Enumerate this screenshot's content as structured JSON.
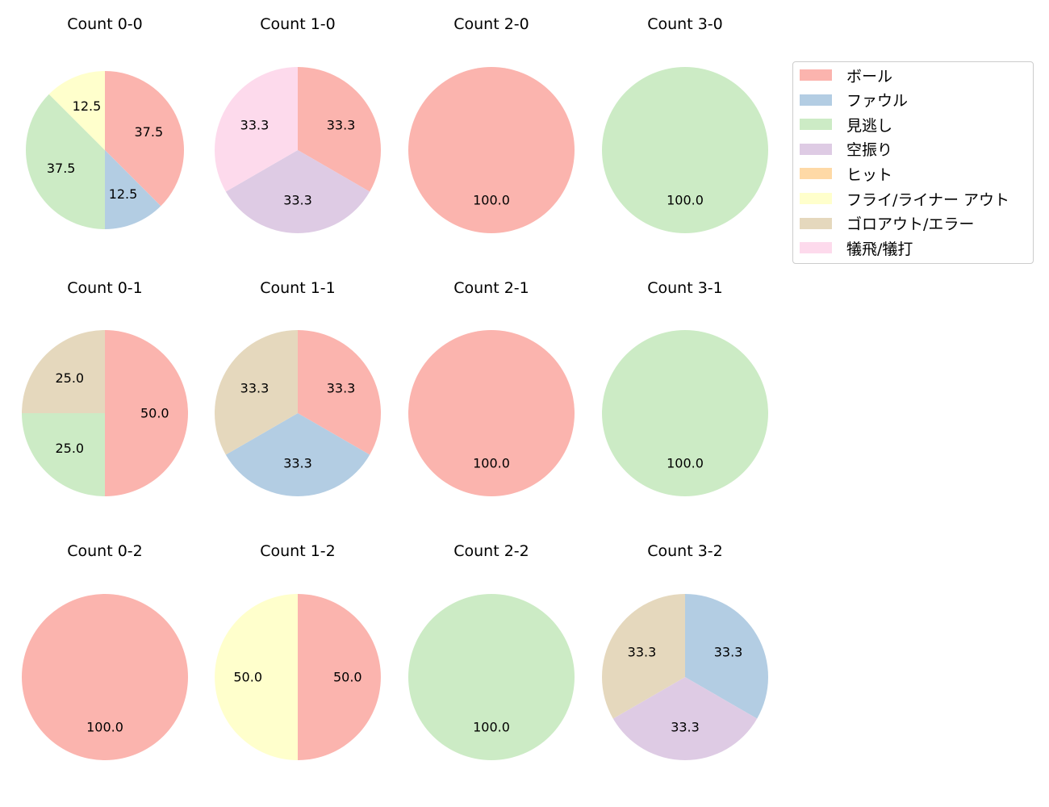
{
  "legend": [
    {
      "label": "ボール",
      "color": "#fbb4ae"
    },
    {
      "label": "ファウル",
      "color": "#b3cde3"
    },
    {
      "label": "見逃し",
      "color": "#ccebc5"
    },
    {
      "label": "空振り",
      "color": "#decbe4"
    },
    {
      "label": "ヒット",
      "color": "#fed9a6"
    },
    {
      "label": "フライ/ライナー アウト",
      "color": "#ffffcc"
    },
    {
      "label": "ゴロアウト/エラー",
      "color": "#e5d8bd"
    },
    {
      "label": "犠飛/犠打",
      "color": "#fddaec"
    }
  ],
  "chart_data": [
    {
      "type": "pie",
      "title": "Count 0-0",
      "slices": [
        {
          "category": "ボール",
          "value": 37.5
        },
        {
          "category": "ファウル",
          "value": 12.5
        },
        {
          "category": "見逃し",
          "value": 37.5
        },
        {
          "category": "フライ/ライナー アウト",
          "value": 12.5
        }
      ]
    },
    {
      "type": "pie",
      "title": "Count 1-0",
      "slices": [
        {
          "category": "ボール",
          "value": 33.3
        },
        {
          "category": "空振り",
          "value": 33.3
        },
        {
          "category": "犠飛/犠打",
          "value": 33.3
        }
      ]
    },
    {
      "type": "pie",
      "title": "Count 2-0",
      "slices": [
        {
          "category": "ボール",
          "value": 100.0
        }
      ]
    },
    {
      "type": "pie",
      "title": "Count 3-0",
      "slices": [
        {
          "category": "見逃し",
          "value": 100.0
        }
      ]
    },
    {
      "type": "pie",
      "title": "Count 0-1",
      "slices": [
        {
          "category": "ボール",
          "value": 50.0
        },
        {
          "category": "見逃し",
          "value": 25.0
        },
        {
          "category": "ゴロアウト/エラー",
          "value": 25.0
        }
      ]
    },
    {
      "type": "pie",
      "title": "Count 1-1",
      "slices": [
        {
          "category": "ボール",
          "value": 33.3
        },
        {
          "category": "ファウル",
          "value": 33.3
        },
        {
          "category": "ゴロアウト/エラー",
          "value": 33.3
        }
      ]
    },
    {
      "type": "pie",
      "title": "Count 2-1",
      "slices": [
        {
          "category": "ボール",
          "value": 100.0
        }
      ]
    },
    {
      "type": "pie",
      "title": "Count 3-1",
      "slices": [
        {
          "category": "見逃し",
          "value": 100.0
        }
      ]
    },
    {
      "type": "pie",
      "title": "Count 0-2",
      "slices": [
        {
          "category": "ボール",
          "value": 100.0
        }
      ]
    },
    {
      "type": "pie",
      "title": "Count 1-2",
      "slices": [
        {
          "category": "ボール",
          "value": 50.0
        },
        {
          "category": "フライ/ライナー アウト",
          "value": 50.0
        }
      ]
    },
    {
      "type": "pie",
      "title": "Count 2-2",
      "slices": [
        {
          "category": "見逃し",
          "value": 100.0
        }
      ]
    },
    {
      "type": "pie",
      "title": "Count 3-2",
      "slices": [
        {
          "category": "ファウル",
          "value": 33.3
        },
        {
          "category": "空振り",
          "value": 33.3
        },
        {
          "category": "ゴロアウト/エラー",
          "value": 33.3
        }
      ]
    }
  ]
}
